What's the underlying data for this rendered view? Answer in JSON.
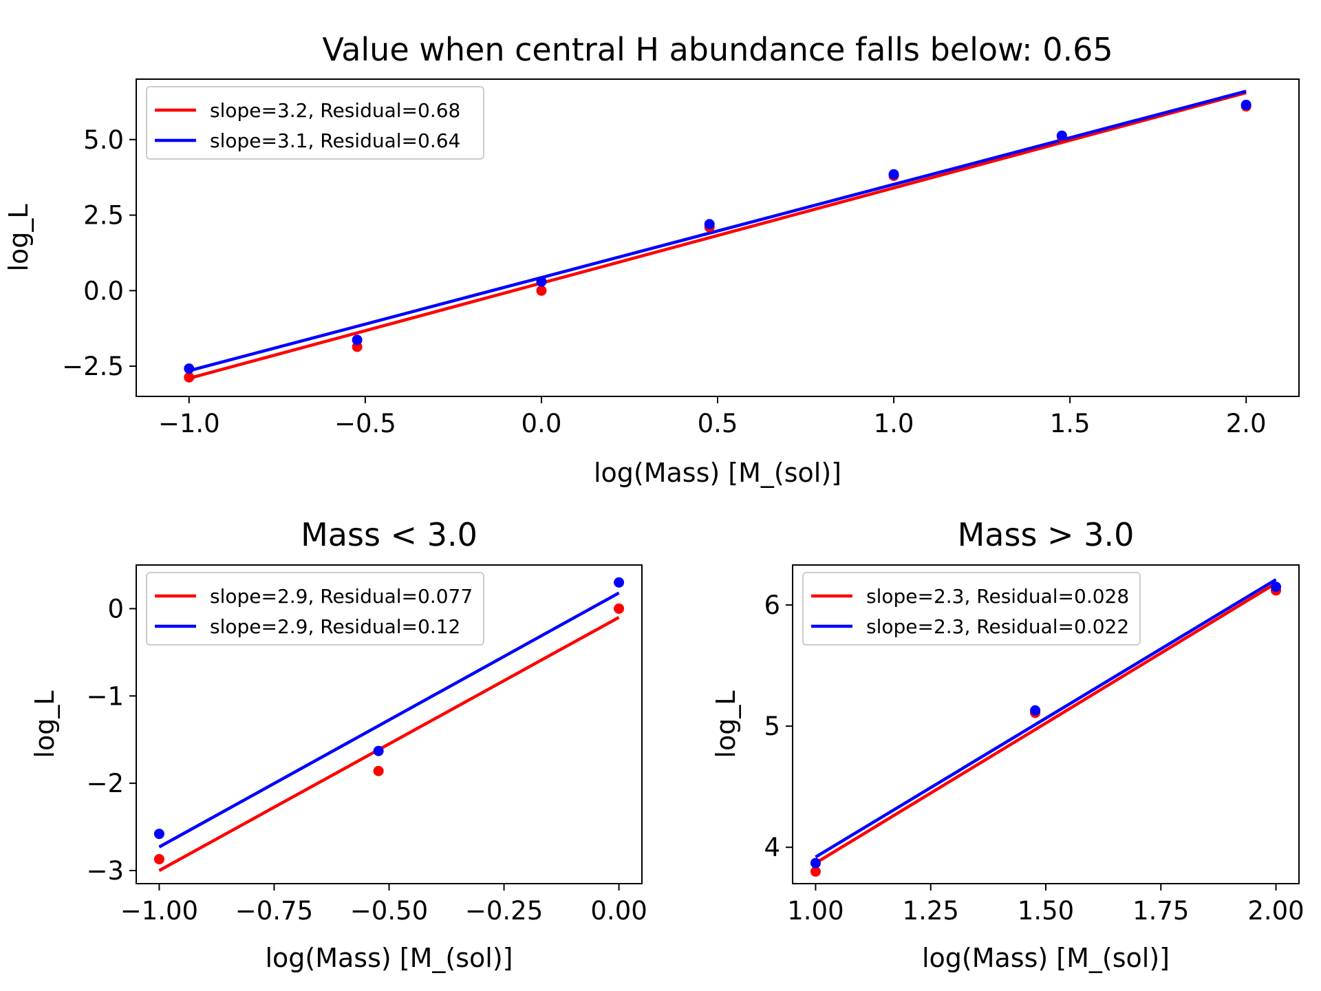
{
  "colors": {
    "red": "#ff0000",
    "blue": "#0000ff"
  },
  "chart_data": [
    {
      "type": "scatter",
      "title": "Value when central H abundance falls below: 0.65",
      "xlabel": "log(Mass) [M_(sol)]",
      "ylabel": "log_L",
      "xlim": [
        -1.15,
        2.15
      ],
      "ylim": [
        -3.5,
        7.0
      ],
      "xticks": [
        -1.0,
        -0.5,
        0.0,
        0.5,
        1.0,
        1.5,
        2.0
      ],
      "xtick_labels": [
        "−1.0",
        "−0.5",
        "0.0",
        "0.5",
        "1.0",
        "1.5",
        "2.0"
      ],
      "yticks": [
        -2.5,
        0.0,
        2.5,
        5.0
      ],
      "ytick_labels": [
        "−2.5",
        "0.0",
        "2.5",
        "5.0"
      ],
      "legend_position": "upper-left",
      "series": [
        {
          "name": "slope=3.2, Residual=0.68",
          "color": "red",
          "points": {
            "x": [
              -1.0,
              -0.523,
              0.0,
              0.477,
              1.0,
              1.477,
              2.0
            ],
            "y": [
              -2.87,
              -1.86,
              0.0,
              2.1,
              3.8,
              5.1,
              6.1
            ]
          },
          "fit": {
            "x": [
              -1.0,
              2.0
            ],
            "y": [
              -2.9,
              6.55
            ]
          }
        },
        {
          "name": "slope=3.1, Residual=0.64",
          "color": "blue",
          "points": {
            "x": [
              -1.0,
              -0.523,
              0.0,
              0.477,
              1.0,
              1.477,
              2.0
            ],
            "y": [
              -2.58,
              -1.63,
              0.3,
              2.2,
              3.85,
              5.13,
              6.15
            ]
          },
          "fit": {
            "x": [
              -1.0,
              2.0
            ],
            "y": [
              -2.65,
              6.6
            ]
          }
        }
      ]
    },
    {
      "type": "scatter",
      "title": "Mass < 3.0",
      "xlabel": "log(Mass) [M_(sol)]",
      "ylabel": "log_L",
      "xlim": [
        -1.05,
        0.05
      ],
      "ylim": [
        -3.15,
        0.5
      ],
      "xticks": [
        -1.0,
        -0.75,
        -0.5,
        -0.25,
        0.0
      ],
      "xtick_labels": [
        "−1.00",
        "−0.75",
        "−0.50",
        "−0.25",
        "0.00"
      ],
      "yticks": [
        -3,
        -2,
        -1,
        0
      ],
      "ytick_labels": [
        "−3",
        "−2",
        "−1",
        "0"
      ],
      "legend_position": "upper-left",
      "series": [
        {
          "name": "slope=2.9, Residual=0.077",
          "color": "red",
          "points": {
            "x": [
              -1.0,
              -0.523,
              0.0
            ],
            "y": [
              -2.87,
              -1.86,
              0.0
            ]
          },
          "fit": {
            "x": [
              -1.0,
              0.0
            ],
            "y": [
              -3.0,
              -0.1
            ]
          }
        },
        {
          "name": "slope=2.9, Residual=0.12",
          "color": "blue",
          "points": {
            "x": [
              -1.0,
              -0.523,
              0.0
            ],
            "y": [
              -2.58,
              -1.63,
              0.3
            ]
          },
          "fit": {
            "x": [
              -1.0,
              0.0
            ],
            "y": [
              -2.73,
              0.18
            ]
          }
        }
      ]
    },
    {
      "type": "scatter",
      "title": "Mass > 3.0",
      "xlabel": "log(Mass) [M_(sol)]",
      "ylabel": "log_L",
      "xlim": [
        0.95,
        2.05
      ],
      "ylim": [
        3.7,
        6.33
      ],
      "xticks": [
        1.0,
        1.25,
        1.5,
        1.75,
        2.0
      ],
      "xtick_labels": [
        "1.00",
        "1.25",
        "1.50",
        "1.75",
        "2.00"
      ],
      "yticks": [
        4,
        5,
        6
      ],
      "ytick_labels": [
        "4",
        "5",
        "6"
      ],
      "legend_position": "upper-left",
      "series": [
        {
          "name": "slope=2.3, Residual=0.028",
          "color": "red",
          "points": {
            "x": [
              1.0,
              1.477,
              2.0
            ],
            "y": [
              3.8,
              5.11,
              6.12
            ]
          },
          "fit": {
            "x": [
              1.0,
              2.0
            ],
            "y": [
              3.87,
              6.18
            ]
          }
        },
        {
          "name": "slope=2.3, Residual=0.022",
          "color": "blue",
          "points": {
            "x": [
              1.0,
              1.477,
              2.0
            ],
            "y": [
              3.87,
              5.13,
              6.15
            ]
          },
          "fit": {
            "x": [
              1.0,
              2.0
            ],
            "y": [
              3.92,
              6.21
            ]
          }
        }
      ]
    }
  ]
}
